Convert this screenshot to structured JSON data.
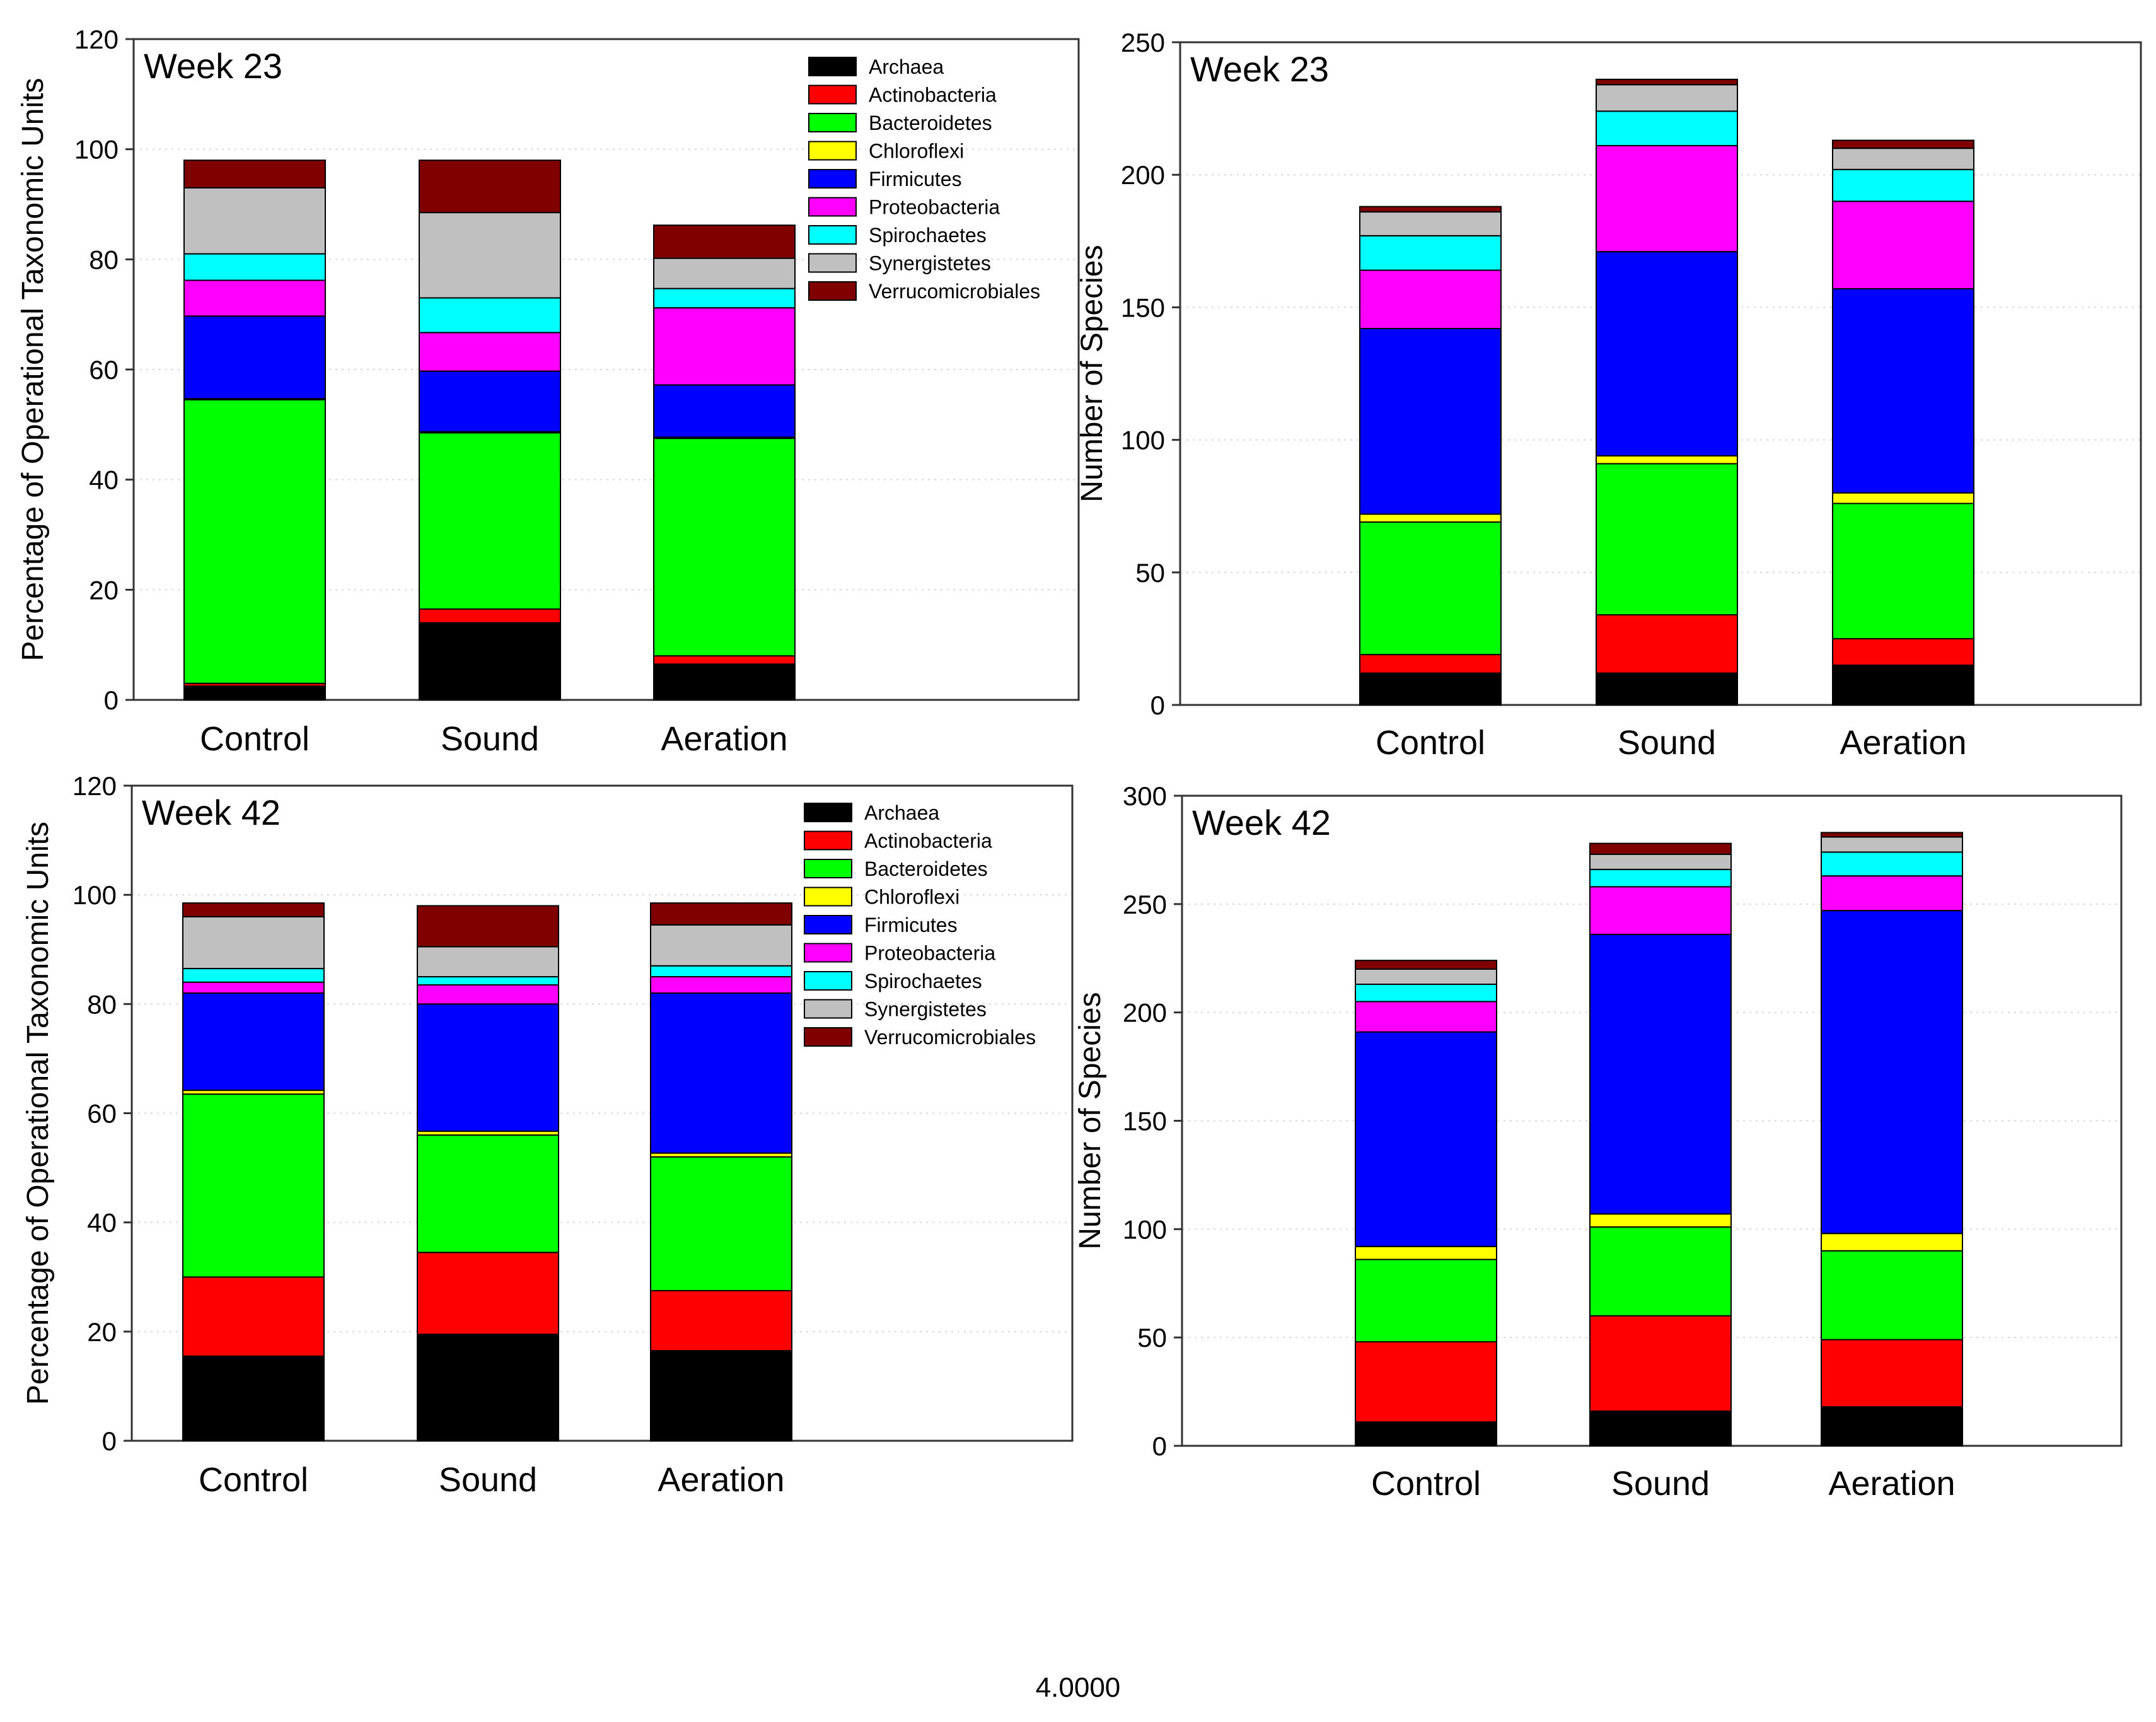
{
  "colors": {
    "Archaea": "#000000",
    "Actinobacteria": "#ff0000",
    "Bacteroidetes": "#00ff00",
    "Chloroflexi": "#ffff00",
    "Firmicutes": "#0000ff",
    "Proteobacteria": "#ff00ff",
    "Spirochaetes": "#00ffff",
    "Synergistetes": "#c0c0c0",
    "Verrucomicrobiales": "#800000"
  },
  "footer": {
    "value": "4.0000"
  },
  "chart_data": [
    {
      "type": "bar",
      "stacked": true,
      "title": "Week 23",
      "xlabel": "",
      "ylabel": "Percentage of Operational Taxonomic Units",
      "ylim": [
        0,
        120
      ],
      "yticks": [
        "0",
        "20",
        "40",
        "60",
        "80",
        "100",
        "120"
      ],
      "categories": [
        "Control",
        "Sound",
        "Aeration"
      ],
      "legend_position": "top-right",
      "series": [
        {
          "name": "Archaea",
          "values": [
            2.5,
            14,
            6.5
          ]
        },
        {
          "name": "Actinobacteria",
          "values": [
            0.5,
            2.5,
            1.5
          ]
        },
        {
          "name": "Bacteroidetes",
          "values": [
            51.5,
            32,
            39.5
          ]
        },
        {
          "name": "Chloroflexi",
          "values": [
            0.2,
            0.2,
            0.2
          ]
        },
        {
          "name": "Firmicutes",
          "values": [
            15,
            11,
            9.5
          ]
        },
        {
          "name": "Proteobacteria",
          "values": [
            6.5,
            7,
            14
          ]
        },
        {
          "name": "Spirochaetes",
          "values": [
            4.8,
            6.3,
            3.5
          ]
        },
        {
          "name": "Synergistetes",
          "values": [
            12,
            15.5,
            5.5
          ]
        },
        {
          "name": "Verrucomicrobiales",
          "values": [
            5,
            9.5,
            6
          ]
        }
      ]
    },
    {
      "type": "bar",
      "stacked": true,
      "title": "Week 23",
      "xlabel": "",
      "ylabel": "Number of Species",
      "ylim": [
        0,
        250
      ],
      "yticks": [
        "0",
        "50",
        "100",
        "150",
        "200",
        "250"
      ],
      "categories": [
        "Control",
        "Sound",
        "Aeration"
      ],
      "series": [
        {
          "name": "Archaea",
          "values": [
            12,
            12,
            15
          ]
        },
        {
          "name": "Actinobacteria",
          "values": [
            7,
            22,
            10
          ]
        },
        {
          "name": "Bacteroidetes",
          "values": [
            50,
            57,
            51
          ]
        },
        {
          "name": "Chloroflexi",
          "values": [
            3,
            3,
            4
          ]
        },
        {
          "name": "Firmicutes",
          "values": [
            70,
            77,
            77
          ]
        },
        {
          "name": "Proteobacteria",
          "values": [
            22,
            40,
            33
          ]
        },
        {
          "name": "Spirochaetes",
          "values": [
            13,
            13,
            12
          ]
        },
        {
          "name": "Synergistetes",
          "values": [
            9,
            10,
            8
          ]
        },
        {
          "name": "Verrucomicrobiales",
          "values": [
            2,
            2,
            3
          ]
        }
      ]
    },
    {
      "type": "bar",
      "stacked": true,
      "title": "Week 42",
      "xlabel": "",
      "ylabel": "Percentage of Operational Taxonomic Units",
      "ylim": [
        0,
        120
      ],
      "yticks": [
        "0",
        "20",
        "40",
        "60",
        "80",
        "100",
        "120"
      ],
      "categories": [
        "Control",
        "Sound",
        "Aeration"
      ],
      "legend_position": "top-right",
      "series": [
        {
          "name": "Archaea",
          "values": [
            15.5,
            19.5,
            16.5
          ]
        },
        {
          "name": "Actinobacteria",
          "values": [
            14.5,
            15,
            11
          ]
        },
        {
          "name": "Bacteroidetes",
          "values": [
            33.5,
            21.5,
            24.5
          ]
        },
        {
          "name": "Chloroflexi",
          "values": [
            0.7,
            0.7,
            0.7
          ]
        },
        {
          "name": "Firmicutes",
          "values": [
            17.8,
            23.3,
            29.3
          ]
        },
        {
          "name": "Proteobacteria",
          "values": [
            2,
            3.5,
            3
          ]
        },
        {
          "name": "Spirochaetes",
          "values": [
            2.5,
            1.5,
            2
          ]
        },
        {
          "name": "Synergistetes",
          "values": [
            9.5,
            5.5,
            7.5
          ]
        },
        {
          "name": "Verrucomicrobiales",
          "values": [
            2.5,
            7.5,
            4
          ]
        }
      ]
    },
    {
      "type": "bar",
      "stacked": true,
      "title": "Week 42",
      "xlabel": "",
      "ylabel": "Number of Species",
      "ylim": [
        0,
        300
      ],
      "yticks": [
        "0",
        "50",
        "100",
        "150",
        "200",
        "250",
        "300"
      ],
      "categories": [
        "Control",
        "Sound",
        "Aeration"
      ],
      "series": [
        {
          "name": "Archaea",
          "values": [
            11,
            16,
            18
          ]
        },
        {
          "name": "Actinobacteria",
          "values": [
            37,
            44,
            31
          ]
        },
        {
          "name": "Bacteroidetes",
          "values": [
            38,
            41,
            41
          ]
        },
        {
          "name": "Chloroflexi",
          "values": [
            6,
            6,
            8
          ]
        },
        {
          "name": "Firmicutes",
          "values": [
            99,
            129,
            149
          ]
        },
        {
          "name": "Proteobacteria",
          "values": [
            14,
            22,
            16
          ]
        },
        {
          "name": "Spirochaetes",
          "values": [
            8,
            8,
            11
          ]
        },
        {
          "name": "Synergistetes",
          "values": [
            7,
            7,
            7
          ]
        },
        {
          "name": "Verrucomicrobiales",
          "values": [
            4,
            5,
            2
          ]
        }
      ]
    }
  ]
}
